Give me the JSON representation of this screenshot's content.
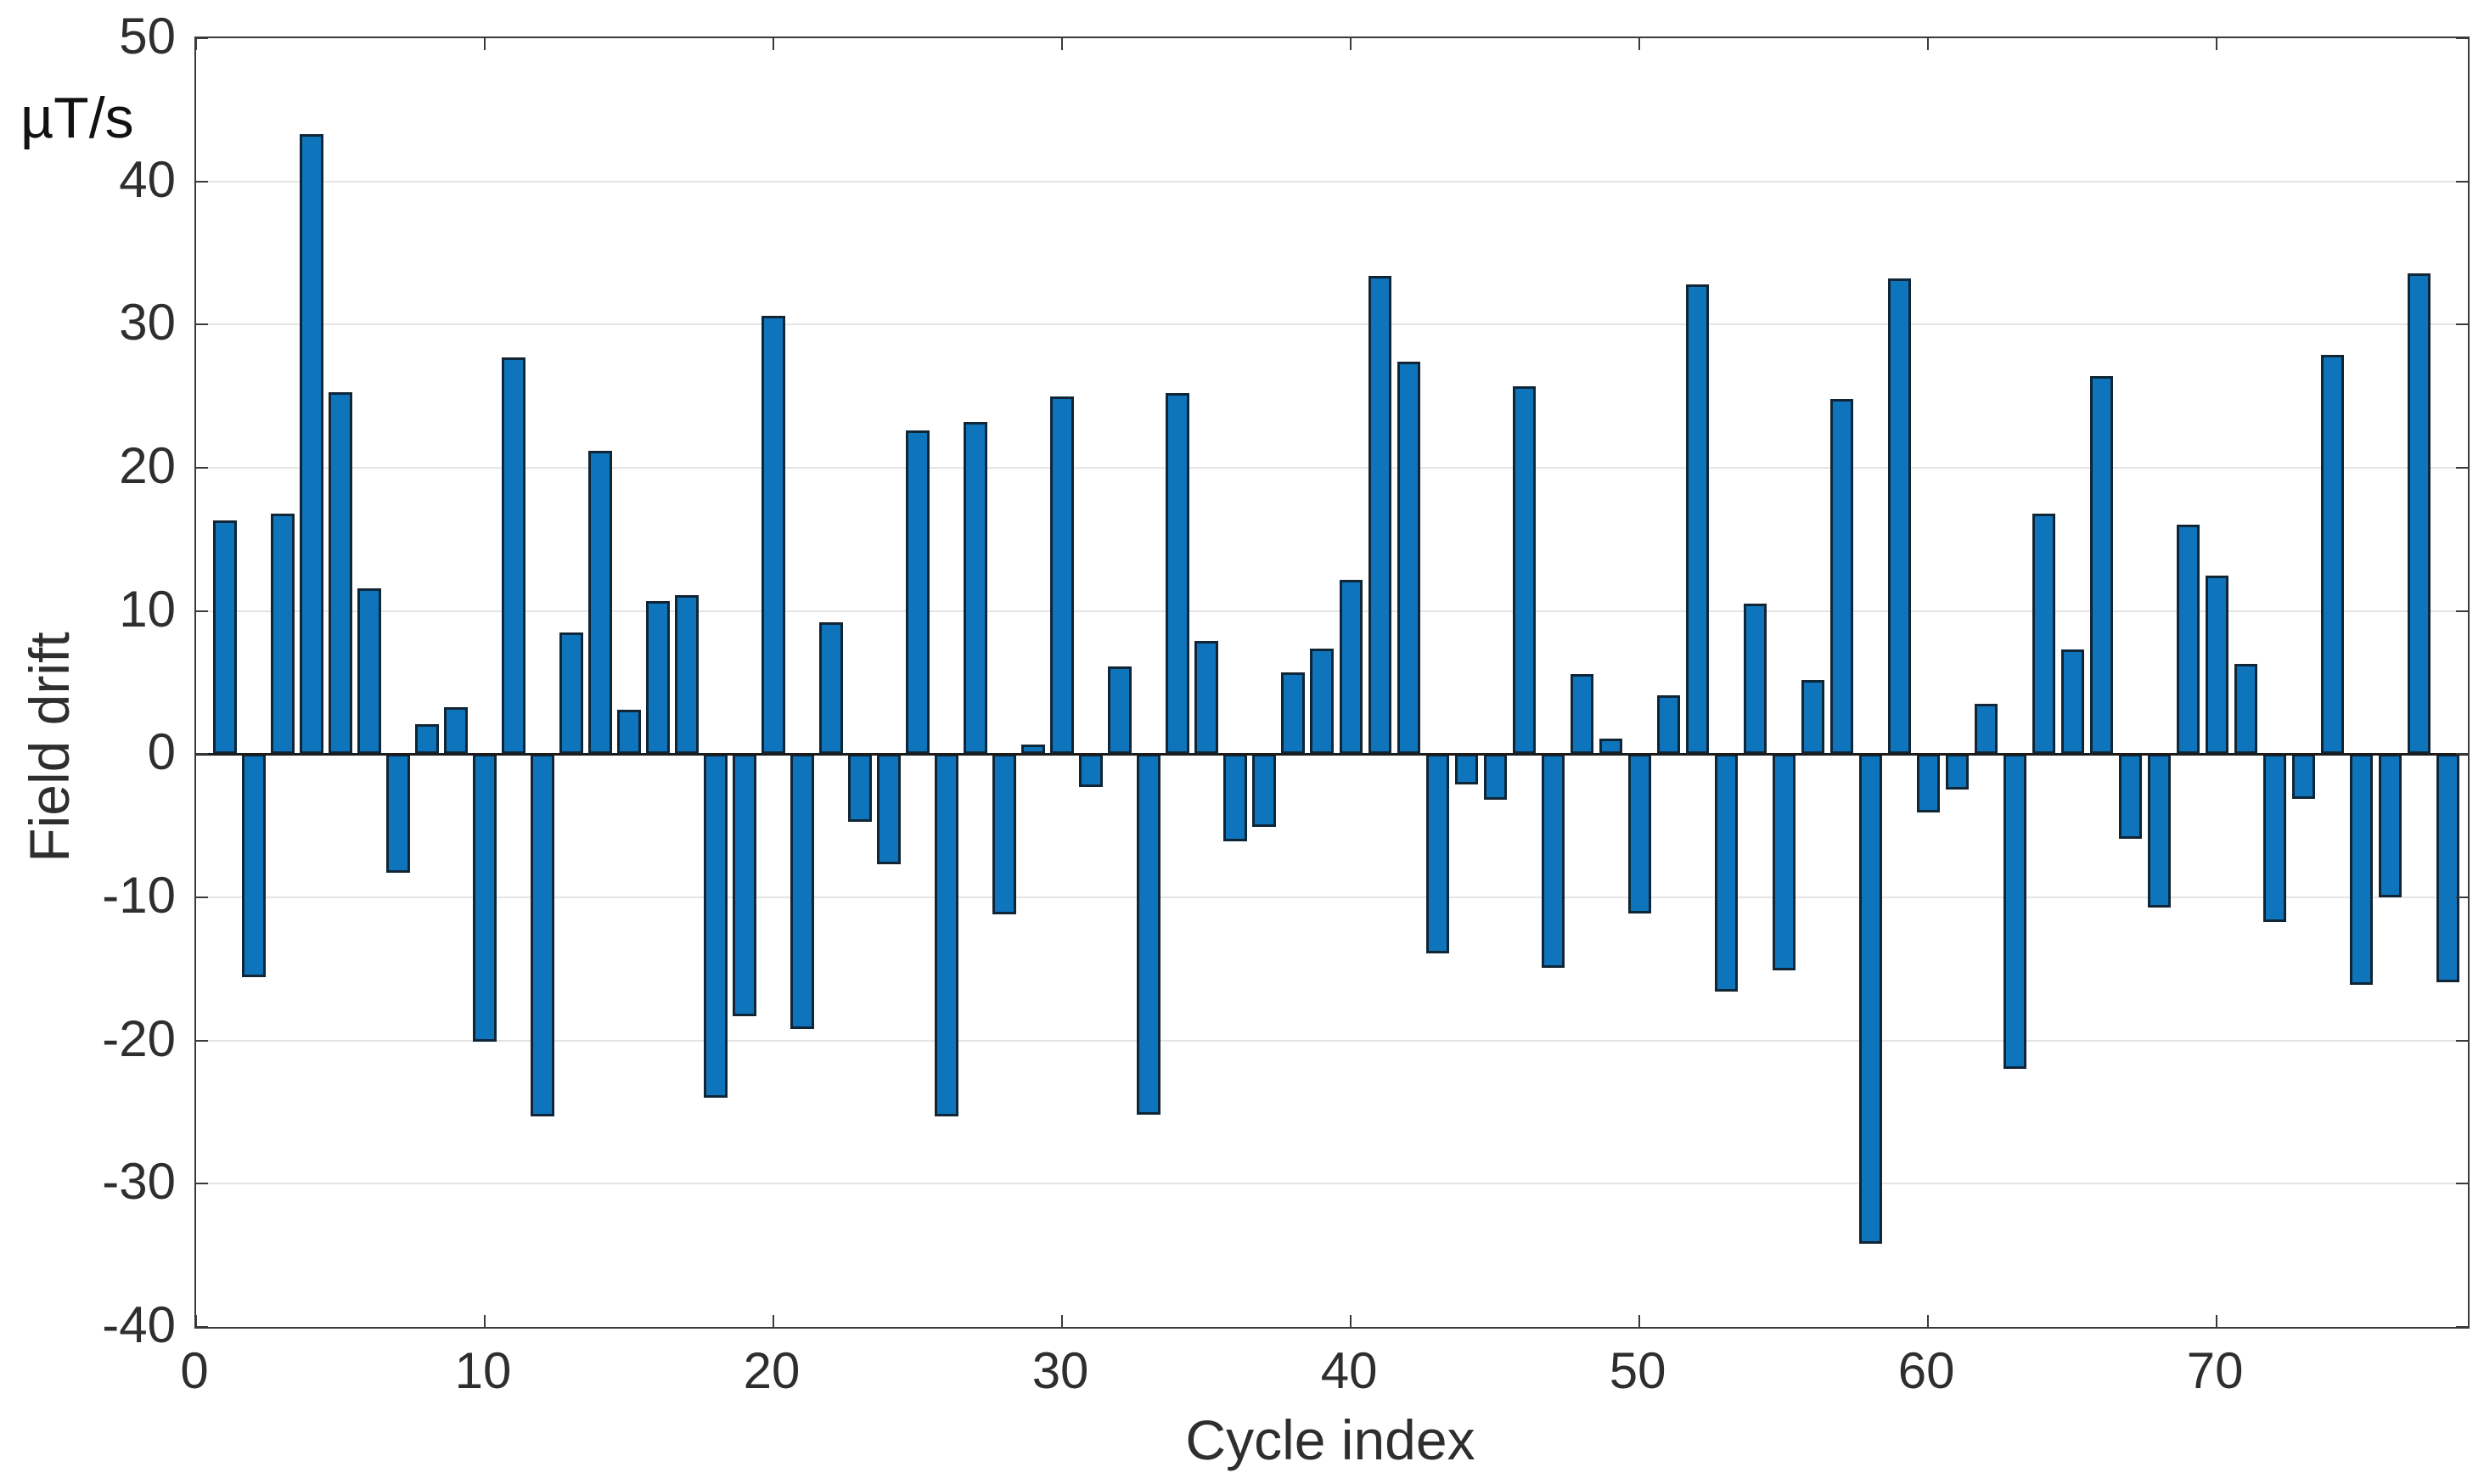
{
  "figure": {
    "unit_label": "µT/s",
    "ylabel": "Field drift",
    "xlabel": "Cycle index"
  },
  "chart_data": {
    "type": "bar",
    "title": "",
    "xlabel": "Cycle index",
    "ylabel": "Field drift",
    "unit_label": "µT/s",
    "x_start": 1,
    "x": [
      1,
      2,
      3,
      4,
      5,
      6,
      7,
      8,
      9,
      10,
      11,
      12,
      13,
      14,
      15,
      16,
      17,
      18,
      19,
      20,
      21,
      22,
      23,
      24,
      25,
      26,
      27,
      28,
      29,
      30,
      31,
      32,
      33,
      34,
      35,
      36,
      37,
      38,
      39,
      40,
      41,
      42,
      43,
      44,
      45,
      46,
      47,
      48,
      49,
      50,
      51,
      52,
      53,
      54,
      55,
      56,
      57,
      58,
      59,
      60,
      61,
      62,
      63,
      64,
      65,
      66,
      67,
      68,
      69,
      70,
      71,
      72,
      73,
      74,
      75,
      76,
      77,
      78
    ],
    "values": [
      16.3,
      -15.6,
      16.8,
      43.3,
      25.3,
      11.6,
      -8.3,
      2.1,
      3.3,
      -20.1,
      27.7,
      -25.3,
      8.5,
      21.2,
      3.1,
      10.7,
      11.1,
      -24.0,
      -18.3,
      30.6,
      -19.2,
      9.2,
      -4.7,
      -7.7,
      22.6,
      -25.3,
      23.2,
      -11.2,
      0.7,
      25.0,
      -2.3,
      6.1,
      -25.2,
      25.2,
      7.9,
      -6.1,
      -5.1,
      5.7,
      7.4,
      12.2,
      33.4,
      27.4,
      -13.9,
      -2.1,
      -3.2,
      25.7,
      -14.9,
      5.6,
      1.1,
      -11.1,
      4.1,
      32.8,
      -16.6,
      10.5,
      -15.1,
      5.2,
      24.8,
      -34.2,
      33.2,
      -4.1,
      -2.5,
      3.5,
      -22.0,
      16.8,
      7.3,
      26.4,
      -5.9,
      -10.7,
      16.0,
      12.5,
      6.3,
      -11.7,
      -3.1,
      27.9,
      -16.1,
      -10.0,
      33.6,
      -15.9
    ],
    "ylim": [
      -40,
      50
    ],
    "xlim": [
      0,
      78.7
    ],
    "yticks": [
      -40,
      -30,
      -20,
      -10,
      0,
      10,
      20,
      30,
      40,
      50
    ],
    "xticks": [
      0,
      10,
      20,
      30,
      40,
      50,
      60,
      70
    ],
    "grid": "horizontal",
    "legend": "none",
    "bar_width": 0.8,
    "bar_color": "#0e74bc",
    "bar_edge_color": "#102636",
    "grid_color": "#e4e4e4",
    "axis_color": "#3a3a3a"
  }
}
